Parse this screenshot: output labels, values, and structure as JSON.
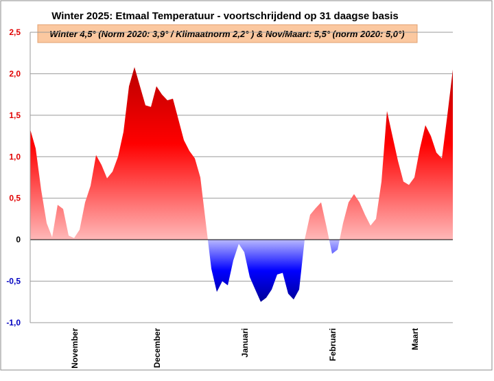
{
  "chart_data": {
    "type": "area",
    "title": "Winter 2025:  Etmaal Temperatuur - voortschrijdend op 31 daagse basis",
    "subtitle": "Winter 4,5°  (Norm  2020: 3,9° / Klimaatnorm 2,2° ) & Nov/Maart: 5,5° (norm 2020: 5,0°)",
    "categories": [
      null,
      null,
      null,
      null,
      null,
      null,
      null,
      null,
      "November",
      null,
      null,
      null,
      null,
      null,
      null,
      null,
      null,
      null,
      null,
      null,
      null,
      null,
      null,
      "December",
      null,
      null,
      null,
      null,
      null,
      null,
      null,
      null,
      null,
      null,
      null,
      null,
      null,
      null,
      null,
      "Januari",
      null,
      null,
      null,
      null,
      null,
      null,
      null,
      null,
      null,
      null,
      null,
      null,
      null,
      null,
      null,
      "Februari",
      null,
      null,
      null,
      null,
      null,
      null,
      null,
      null,
      null,
      null,
      null,
      null,
      null,
      null,
      "Maart",
      null,
      null,
      null,
      null,
      null,
      null,
      null
    ],
    "values": [
      1.33,
      1.1,
      0.6,
      0.2,
      0.03,
      0.42,
      0.37,
      0.05,
      0.02,
      0.12,
      0.45,
      0.65,
      1.02,
      0.9,
      0.74,
      0.82,
      1.0,
      1.3,
      1.85,
      2.08,
      1.85,
      1.62,
      1.6,
      1.85,
      1.75,
      1.68,
      1.7,
      1.45,
      1.2,
      1.07,
      0.98,
      0.75,
      0.2,
      -0.35,
      -0.63,
      -0.5,
      -0.55,
      -0.25,
      -0.05,
      -0.15,
      -0.45,
      -0.6,
      -0.75,
      -0.7,
      -0.6,
      -0.42,
      -0.4,
      -0.65,
      -0.72,
      -0.6,
      0.0,
      0.3,
      0.38,
      0.45,
      0.15,
      -0.17,
      -0.12,
      0.2,
      0.45,
      0.55,
      0.45,
      0.3,
      0.17,
      0.25,
      0.7,
      1.55,
      1.25,
      0.95,
      0.7,
      0.66,
      0.75,
      1.1,
      1.38,
      1.25,
      1.05,
      0.98,
      1.5,
      2.05
    ],
    "ylim": [
      -1.0,
      2.5
    ],
    "yticks": [
      {
        "value": -1.0,
        "label": "-1,0"
      },
      {
        "value": -0.5,
        "label": "-0,5"
      },
      0,
      {
        "value": 0.5,
        "label": "0,5"
      },
      {
        "value": 1.0,
        "label": "1,0"
      },
      {
        "value": 1.5,
        "label": "1,5"
      },
      {
        "value": 2.0,
        "label": "2,0"
      },
      {
        "value": 2.5,
        "label": "2,5"
      }
    ],
    "grid": true,
    "positive_color": "#e00000",
    "negative_color": "#0000c0"
  }
}
